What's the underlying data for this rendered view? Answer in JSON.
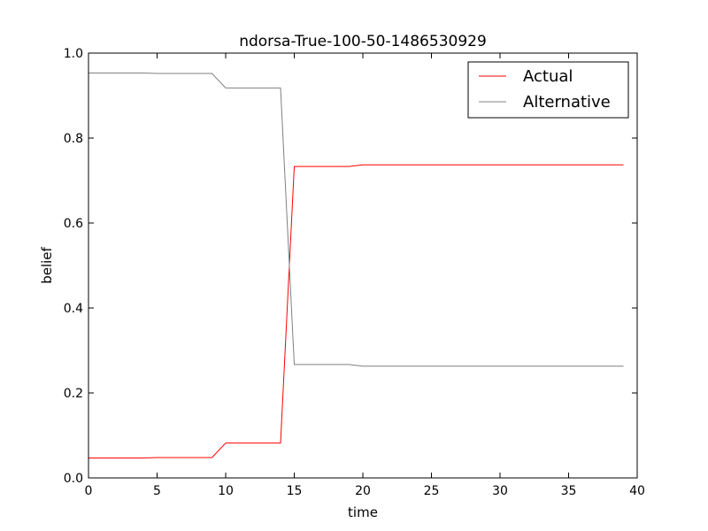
{
  "chart_data": {
    "type": "line",
    "title": "ndorsa-True-100-50-1486530929",
    "xlabel": "time",
    "ylabel": "belief",
    "xlim": [
      0,
      40
    ],
    "ylim": [
      0,
      1.0
    ],
    "xticks": [
      0,
      5,
      10,
      15,
      20,
      25,
      30,
      35,
      40
    ],
    "xtick_labels": [
      "0",
      "5",
      "10",
      "15",
      "20",
      "25",
      "30",
      "35",
      "40"
    ],
    "yticks": [
      0.0,
      0.2,
      0.4,
      0.6,
      0.8,
      1.0
    ],
    "ytick_labels": [
      "0.0",
      "0.2",
      "0.4",
      "0.6",
      "0.8",
      "1.0"
    ],
    "grid": false,
    "legend_position": "top-right",
    "series": [
      {
        "name": "Actual",
        "color": "#ff0000",
        "x": [
          0,
          4,
          5,
          9,
          10,
          14,
          15,
          19,
          20,
          39
        ],
        "values": [
          0.047,
          0.047,
          0.048,
          0.048,
          0.082,
          0.082,
          0.733,
          0.733,
          0.737,
          0.737
        ]
      },
      {
        "name": "Alternative",
        "color": "#808080",
        "x": [
          0,
          4,
          5,
          9,
          10,
          14,
          15,
          19,
          20,
          39
        ],
        "values": [
          0.953,
          0.953,
          0.952,
          0.952,
          0.918,
          0.918,
          0.267,
          0.267,
          0.263,
          0.263
        ]
      }
    ]
  }
}
